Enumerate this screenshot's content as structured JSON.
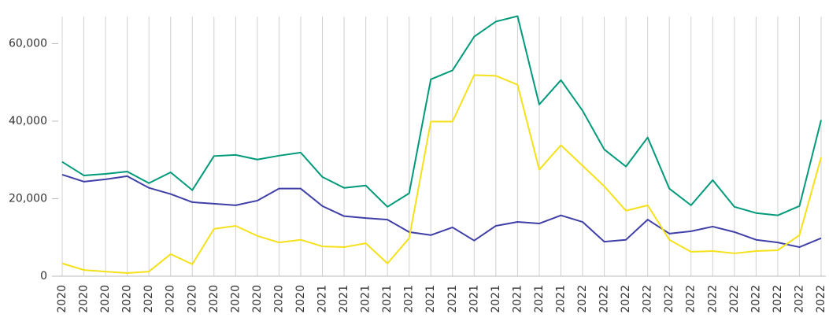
{
  "chart_data": {
    "type": "line",
    "categories": [
      "2020",
      "2020",
      "2020",
      "2020",
      "2020",
      "2020",
      "2020",
      "2020",
      "2020",
      "2020",
      "2020",
      "2020",
      "2021",
      "2021",
      "2021",
      "2021",
      "2021",
      "2021",
      "2021",
      "2021",
      "2021",
      "2021",
      "2021",
      "2021",
      "2022",
      "2022",
      "2022",
      "2022",
      "2022",
      "2022",
      "2022",
      "2022",
      "2022",
      "2022",
      "2022",
      "2022"
    ],
    "series": [
      {
        "color": "#009a7a",
        "values": [
          29500,
          26000,
          26400,
          27000,
          24000,
          26800,
          22200,
          31000,
          31300,
          30100,
          31100,
          31900,
          25600,
          22800,
          23400,
          17900,
          21400,
          50800,
          53100,
          61800,
          65700,
          67100,
          44300,
          50600,
          42700,
          32700,
          28300,
          35800,
          22600,
          18300,
          24800,
          17900,
          16300,
          15700,
          18100,
          40300
        ]
      },
      {
        "color": "#3f3fa8",
        "values": [
          26200,
          24400,
          25000,
          25800,
          22800,
          21200,
          19100,
          18700,
          18300,
          19500,
          22600,
          22600,
          18100,
          15500,
          15000,
          14600,
          11400,
          10600,
          12600,
          9200,
          13000,
          14000,
          13600,
          15700,
          14000,
          8900,
          9400,
          14600,
          11000,
          11600,
          12800,
          11400,
          9400,
          8700,
          7500,
          9800
        ]
      },
      {
        "color": "#f5e11a",
        "values": [
          3300,
          1600,
          1200,
          800,
          1200,
          5700,
          3100,
          12200,
          13000,
          10400,
          8700,
          9400,
          7700,
          7500,
          8500,
          3300,
          9800,
          39900,
          39900,
          51900,
          51700,
          49400,
          27500,
          33800,
          28500,
          23200,
          16900,
          18300,
          9400,
          6300,
          6500,
          5900,
          6500,
          6700,
          10600,
          30700
        ]
      }
    ],
    "ylim": [
      0,
      67000
    ],
    "yticks": [
      0,
      {
        "value": 20000,
        "label": "20,000"
      },
      {
        "value": 40000,
        "label": "40,000"
      },
      {
        "value": 60000,
        "label": "60,000"
      }
    ],
    "grid": true
  }
}
